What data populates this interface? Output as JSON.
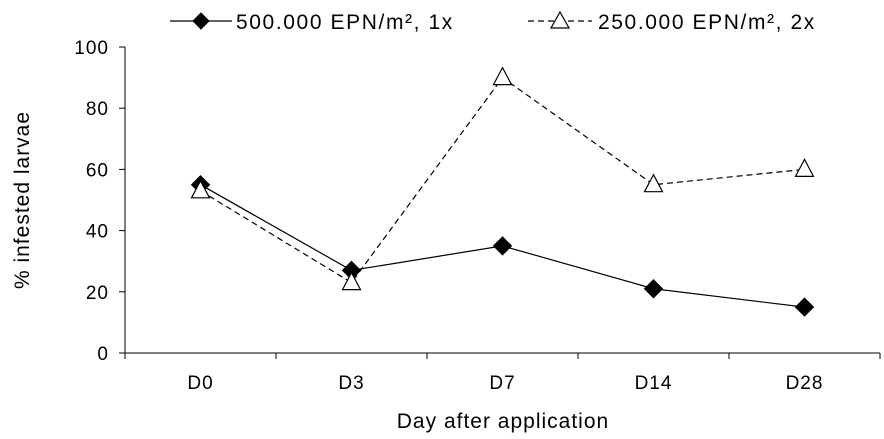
{
  "chart_data": {
    "type": "line",
    "title": "",
    "xlabel": "Day after application",
    "ylabel": "% infested larvae",
    "categories": [
      "D0",
      "D3",
      "D7",
      "D14",
      "D28"
    ],
    "ylim": [
      0,
      100
    ],
    "yticks": [
      0,
      20,
      40,
      60,
      80,
      100
    ],
    "grid": false,
    "legend_position": "top",
    "series": [
      {
        "name": "500.000 EPN/m², 1x",
        "values": [
          55,
          27,
          35,
          21,
          15
        ],
        "marker": "filled-diamond",
        "line_style": "solid",
        "color": "#000000"
      },
      {
        "name": "250.000 EPN/m², 2x",
        "values": [
          53,
          23,
          90,
          55,
          60
        ],
        "marker": "open-triangle",
        "line_style": "dashed",
        "color": "#000000"
      }
    ]
  }
}
